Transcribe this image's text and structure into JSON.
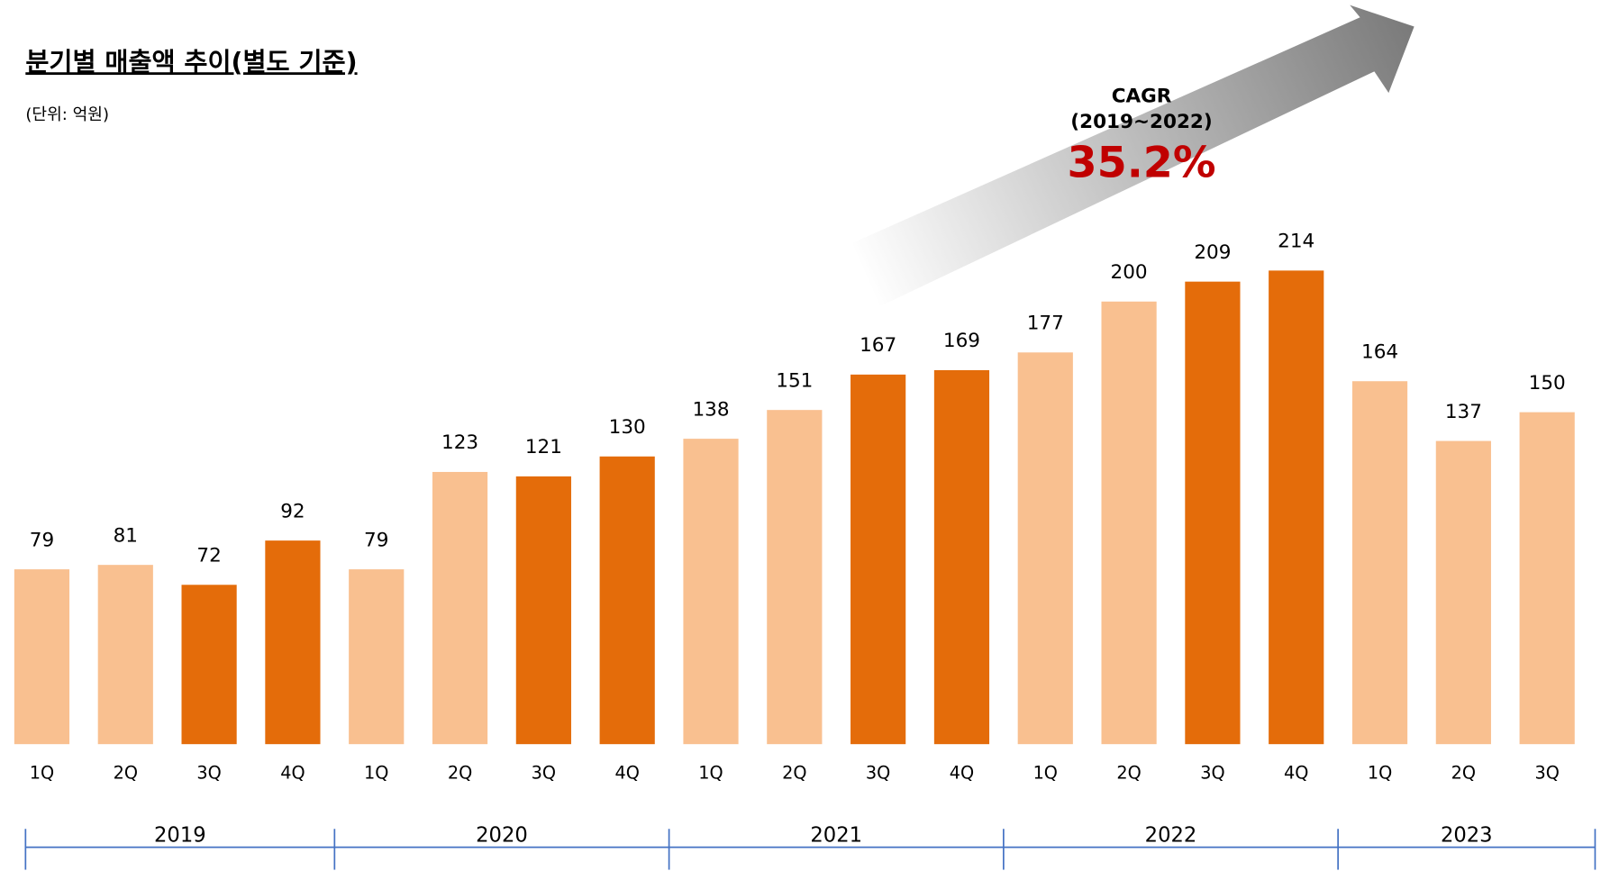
{
  "chart_data": {
    "type": "bar",
    "title": "분기별 매출액 추이(별도 기준)",
    "subtitle": "(단위: 억원)",
    "categories": [
      "1Q",
      "2Q",
      "3Q",
      "4Q",
      "1Q",
      "2Q",
      "3Q",
      "4Q",
      "1Q",
      "2Q",
      "3Q",
      "4Q",
      "1Q",
      "2Q",
      "3Q",
      "4Q",
      "1Q",
      "2Q",
      "3Q"
    ],
    "values": [
      79,
      81,
      72,
      92,
      79,
      123,
      121,
      130,
      138,
      151,
      167,
      169,
      177,
      200,
      209,
      214,
      164,
      137,
      150
    ],
    "colors": [
      "#f9c090",
      "#f9c090",
      "#e46c0a",
      "#e46c0a",
      "#f9c090",
      "#f9c090",
      "#e46c0a",
      "#e46c0a",
      "#f9c090",
      "#f9c090",
      "#e46c0a",
      "#e46c0a",
      "#f9c090",
      "#f9c090",
      "#e46c0a",
      "#e46c0a",
      "#f9c090",
      "#f9c090",
      "#f9c090"
    ],
    "year_groups": [
      {
        "label": "2019",
        "first": 0,
        "last": 3
      },
      {
        "label": "2020",
        "first": 4,
        "last": 7
      },
      {
        "label": "2021",
        "first": 8,
        "last": 11
      },
      {
        "label": "2022",
        "first": 12,
        "last": 15
      },
      {
        "label": "2023",
        "first": 16,
        "last": 18
      }
    ],
    "annotation": {
      "label": "CAGR",
      "period": "(2019~2022)",
      "rate": "35.2%"
    }
  }
}
